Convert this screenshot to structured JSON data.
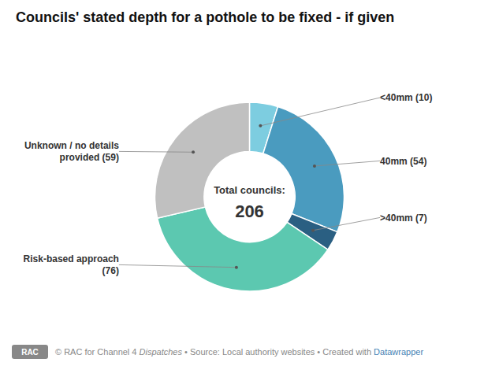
{
  "chart_data": {
    "type": "donut",
    "title": "Councils' stated depth for a pothole to be fixed - if given",
    "categories": [
      "<40mm (10)",
      "40mm (54)",
      ">40mm (7)",
      "Risk-based approach\n(76)",
      "Unknown / no details\nprovided (59)"
    ],
    "values": [
      10,
      54,
      7,
      76,
      59
    ],
    "colors": [
      "#7dcde0",
      "#4a9bbf",
      "#2a5f82",
      "#5cc8b0",
      "#c0c0c0"
    ],
    "center_text": [
      "Total councils:",
      "206"
    ],
    "footer": [
      "© RAC for Channel 4 ",
      "Dispatches",
      " • Source: Local authority websites • Created with ",
      "Datawrapper"
    ],
    "logo_text": "RAC"
  }
}
